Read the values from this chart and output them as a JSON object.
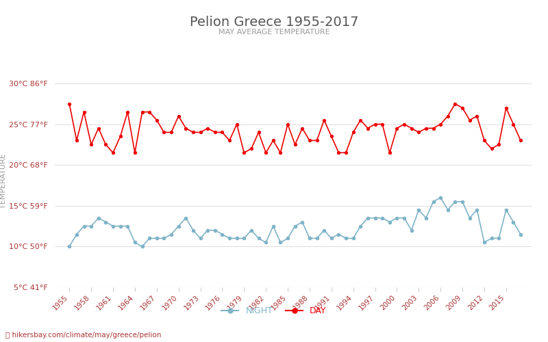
{
  "title": "Pelion Greece 1955-2017",
  "subtitle": "MAY AVERAGE TEMPERATURE",
  "ylabel": "TEMPERATURE",
  "xlabel_url": "📍 hikersbay.com/climate/may/greece/pelion",
  "years": [
    1955,
    1956,
    1957,
    1958,
    1959,
    1960,
    1961,
    1962,
    1963,
    1964,
    1965,
    1966,
    1967,
    1968,
    1969,
    1970,
    1971,
    1972,
    1973,
    1974,
    1975,
    1976,
    1977,
    1978,
    1979,
    1980,
    1981,
    1982,
    1983,
    1984,
    1985,
    1986,
    1987,
    1988,
    1989,
    1990,
    1991,
    1992,
    1993,
    1994,
    1995,
    1996,
    1997,
    1998,
    1999,
    2000,
    2001,
    2002,
    2003,
    2004,
    2005,
    2006,
    2007,
    2008,
    2009,
    2010,
    2011,
    2012,
    2013,
    2014,
    2015,
    2016,
    2017
  ],
  "day_temps": [
    27.5,
    23.0,
    26.5,
    22.5,
    24.5,
    22.5,
    21.5,
    23.5,
    26.5,
    21.5,
    26.5,
    26.5,
    25.5,
    24.0,
    24.0,
    26.0,
    24.5,
    24.0,
    24.0,
    24.5,
    24.0,
    24.0,
    23.0,
    25.0,
    21.5,
    22.0,
    24.0,
    21.5,
    23.0,
    21.5,
    25.0,
    22.5,
    24.5,
    23.0,
    23.0,
    25.5,
    23.5,
    21.5,
    21.5,
    24.0,
    25.5,
    24.5,
    25.0,
    25.0,
    21.5,
    24.5,
    25.0,
    24.5,
    24.0,
    24.5,
    24.5,
    25.0,
    26.0,
    27.5,
    27.0,
    25.5,
    26.0,
    23.0,
    22.0,
    22.5,
    27.0,
    25.0,
    23.0
  ],
  "night_temps": [
    10.0,
    11.5,
    12.5,
    12.5,
    13.5,
    13.0,
    12.5,
    12.5,
    12.5,
    10.5,
    10.0,
    11.0,
    11.0,
    11.0,
    11.5,
    12.5,
    13.5,
    12.0,
    11.0,
    12.0,
    12.0,
    11.5,
    11.0,
    11.0,
    11.0,
    12.0,
    11.0,
    10.5,
    12.5,
    10.5,
    11.0,
    12.5,
    13.0,
    11.0,
    11.0,
    12.0,
    11.0,
    11.5,
    11.0,
    11.0,
    12.5,
    13.5,
    13.5,
    13.5,
    13.0,
    13.5,
    13.5,
    12.0,
    14.5,
    13.5,
    15.5,
    16.0,
    14.5,
    15.5,
    15.5,
    13.5,
    14.5,
    10.5,
    11.0,
    11.0,
    14.5,
    13.0,
    11.5
  ],
  "day_color": "#ee0000",
  "night_color": "#7fb3c8",
  "title_color": "#555555",
  "subtitle_color": "#999999",
  "ylabel_color": "#999999",
  "tick_color": "#aa3333",
  "grid_color": "#e0e0e0",
  "ylim": [
    5,
    31
  ],
  "yticks_c": [
    5,
    10,
    15,
    20,
    25,
    30
  ],
  "yticks_f": [
    41,
    50,
    59,
    68,
    77,
    86
  ],
  "background_color": "#ffffff",
  "figwidth": 8.0,
  "figheight": 5.0,
  "dpi": 100
}
